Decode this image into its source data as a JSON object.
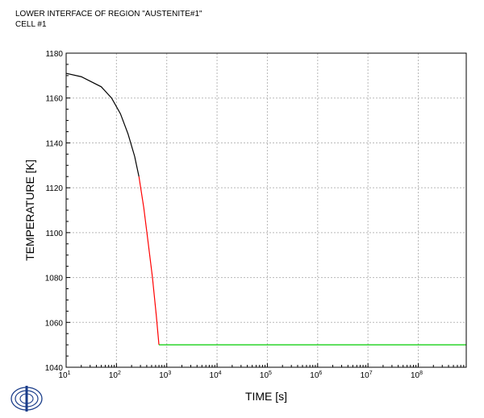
{
  "header": {
    "line1": "LOWER INTERFACE OF REGION \"AUSTENITE#1\"",
    "line2": "CELL #1"
  },
  "logo": {
    "icon": "thermo-calc-logo-icon"
  },
  "colors": {
    "segment1": "#000000",
    "segment2": "#ff0000",
    "segment3": "#00cc00",
    "grid": "#b8b8b8"
  },
  "chart_data": {
    "type": "line",
    "title": "",
    "xlabel": "TIME [s]",
    "ylabel": "TEMPERATURE [K]",
    "x_scale": "log",
    "xlim": [
      10,
      900000000
    ],
    "ylim": [
      1040,
      1180
    ],
    "grid": true,
    "legend": "none",
    "x_ticks": [
      {
        "value": 10,
        "base": "10",
        "exp": "1"
      },
      {
        "value": 100,
        "base": "10",
        "exp": "2"
      },
      {
        "value": 1000,
        "base": "10",
        "exp": "3"
      },
      {
        "value": 10000,
        "base": "10",
        "exp": "4"
      },
      {
        "value": 100000,
        "base": "10",
        "exp": "5"
      },
      {
        "value": 1000000,
        "base": "10",
        "exp": "6"
      },
      {
        "value": 10000000,
        "base": "10",
        "exp": "7"
      },
      {
        "value": 100000000,
        "base": "10",
        "exp": "8"
      }
    ],
    "y_ticks": [
      "1040",
      "1060",
      "1080",
      "1100",
      "1120",
      "1140",
      "1160",
      "1180"
    ],
    "series": [
      {
        "color": "#000000",
        "points": [
          [
            10,
            1171
          ],
          [
            20,
            1169.5
          ],
          [
            50,
            1165
          ],
          [
            80,
            1160
          ],
          [
            120,
            1153
          ],
          [
            170,
            1144
          ],
          [
            230,
            1134
          ],
          [
            280,
            1125
          ]
        ]
      },
      {
        "color": "#ff0000",
        "points": [
          [
            280,
            1125
          ],
          [
            350,
            1111
          ],
          [
            430,
            1095
          ],
          [
            520,
            1080
          ],
          [
            620,
            1063
          ],
          [
            700,
            1050
          ]
        ]
      },
      {
        "color": "#00cc00",
        "points": [
          [
            700,
            1050
          ],
          [
            900000000,
            1050
          ]
        ]
      }
    ]
  }
}
